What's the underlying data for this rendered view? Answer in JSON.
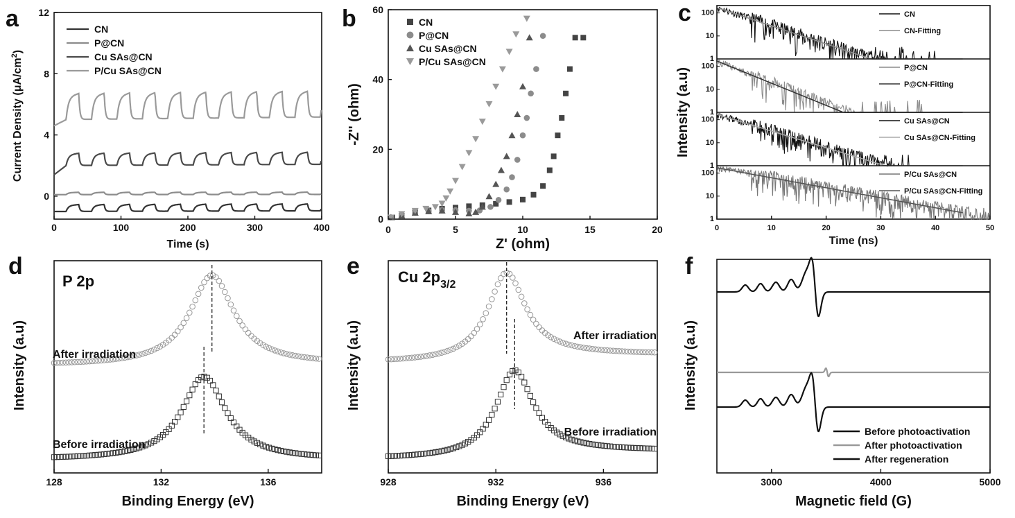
{
  "panels": {
    "a": "a",
    "b": "b",
    "c": "c",
    "d": "d",
    "e": "e",
    "f": "f"
  },
  "chart_data": [
    {
      "id": "a",
      "type": "line",
      "title": "",
      "xlabel": "Time (s)",
      "ylabel_main": "Current Density (",
      "ylabel_mu": "μ",
      "ylabel_unit": "A/cm",
      "ylabel_sup": "2",
      "ylabel_end": ")",
      "xlim": [
        0,
        400
      ],
      "ylim": [
        -1.5,
        12
      ],
      "xticks": [
        0,
        100,
        200,
        300,
        400
      ],
      "yticks": [
        0,
        4,
        8,
        12
      ],
      "legend": [
        "CN",
        "P@CN",
        "Cu SAs@CN",
        "P/Cu SAs@CN"
      ],
      "series": [
        {
          "name": "CN",
          "color": "#333333",
          "base": -1.0,
          "amp": 0.45,
          "start": -1.0
        },
        {
          "name": "P@CN",
          "color": "#8c8c8c",
          "base": 0.1,
          "amp": 0.15,
          "start": 0.1
        },
        {
          "name": "Cu SAs@CN",
          "color": "#4a4a4a",
          "base": 2.0,
          "amp": 0.8,
          "start": 1.4
        },
        {
          "name": "P/Cu SAs@CN",
          "color": "#9a9a9a",
          "base": 5.0,
          "amp": 1.7,
          "start": 4.6
        }
      ],
      "on_period_s": 38
    },
    {
      "id": "b",
      "type": "scatter",
      "xlabel": "Z' (ohm)",
      "ylabel": "-Z'' (ohm)",
      "xlim": [
        0,
        20
      ],
      "ylim": [
        0,
        60
      ],
      "xticks": [
        0,
        5,
        10,
        15,
        20
      ],
      "yticks": [
        0,
        20,
        40,
        60
      ],
      "legend": [
        "CN",
        "P@CN",
        "Cu SAs@CN",
        "P/Cu SAs@CN"
      ],
      "series": [
        {
          "name": "CN",
          "marker": "square",
          "color": "#444444",
          "x": [
            0.3,
            1.0,
            2.0,
            3.0,
            4.0,
            5.0,
            6.0,
            7.0,
            8.0,
            9.0,
            10.0,
            10.8,
            11.5,
            12.0,
            12.3,
            12.6,
            12.9,
            13.2,
            13.5,
            13.9,
            14.5
          ],
          "y": [
            0.5,
            1.0,
            2.0,
            2.5,
            3.0,
            3.3,
            3.7,
            4.0,
            4.4,
            4.9,
            5.6,
            7.0,
            9.5,
            14,
            18,
            24,
            29,
            36,
            43,
            52,
            52
          ]
        },
        {
          "name": "P@CN",
          "marker": "circle",
          "color": "#8c8c8c",
          "x": [
            0.2,
            1.0,
            2.0,
            3.0,
            4.0,
            5.0,
            6.0,
            6.8,
            7.6,
            8.2,
            8.8,
            9.2,
            9.6,
            10.0,
            10.3,
            10.6,
            11.0,
            11.5
          ],
          "y": [
            0.5,
            1.0,
            1.8,
            2.3,
            2.6,
            2.6,
            2.4,
            2.5,
            3.5,
            5.5,
            8.5,
            12,
            17,
            24,
            29,
            36,
            43,
            52.5
          ]
        },
        {
          "name": "Cu SAs@CN",
          "marker": "triangle-up",
          "color": "#555555",
          "x": [
            0.2,
            1.0,
            2.0,
            3.0,
            4.0,
            5.0,
            6.0,
            6.5,
            7.0,
            7.5,
            8.0,
            8.4,
            8.8,
            9.2,
            9.6,
            10.0,
            10.5
          ],
          "y": [
            0.5,
            1.0,
            1.8,
            2.2,
            2.4,
            2.0,
            1.6,
            2.0,
            3.5,
            6.5,
            10,
            14,
            18,
            24,
            30,
            38,
            52
          ]
        },
        {
          "name": "P/Cu SAs@CN",
          "marker": "triangle-down",
          "color": "#9a9a9a",
          "x": [
            0.2,
            1.0,
            2.0,
            2.8,
            3.5,
            4.0,
            4.3,
            4.6,
            5.0,
            5.5,
            6.0,
            6.5,
            7.0,
            7.5,
            8.0,
            8.5,
            9.0,
            9.5,
            10.3
          ],
          "y": [
            0.5,
            1.5,
            2.4,
            3.0,
            3.5,
            4.5,
            6,
            8,
            11,
            15,
            19,
            23,
            28,
            33,
            38,
            43,
            48,
            53,
            57.5
          ]
        }
      ]
    },
    {
      "id": "c",
      "type": "line",
      "xlabel": "Time (ns)",
      "ylabel": "Intensity (a.u)",
      "xlim": [
        0,
        50
      ],
      "xticks": [
        0,
        10,
        20,
        30,
        40,
        50
      ],
      "yticks": [
        1,
        10,
        100
      ],
      "subplots": [
        {
          "legend": [
            "CN",
            "CN-Fitting"
          ],
          "colors": [
            "#111111",
            "#8c8c8c"
          ],
          "tau": 5.5,
          "noise_end": 40
        },
        {
          "legend": [
            "P@CN",
            "P@CN-Fitting"
          ],
          "colors": [
            "#8c8c8c",
            "#333333"
          ],
          "tau": 4.5,
          "noise_end": 38
        },
        {
          "legend": [
            "Cu SAs@CN",
            "Cu SAs@CN-Fitting"
          ],
          "colors": [
            "#111111",
            "#aaaaaa"
          ],
          "tau": 6.0,
          "noise_end": 36
        },
        {
          "legend": [
            "P/Cu SAs@CN",
            "P/Cu SAs@CN-Fitting"
          ],
          "colors": [
            "#777777",
            "#555555"
          ],
          "tau": 10.0,
          "noise_end": 50
        }
      ]
    },
    {
      "id": "d",
      "type": "scatter",
      "title": "P 2p",
      "xlabel": "Binding Energy (eV)",
      "ylabel": "Intensity (a.u)",
      "xlim": [
        128,
        138
      ],
      "xticks": [
        128,
        132,
        136
      ],
      "series": [
        {
          "name": "After irradiation",
          "marker": "circle",
          "center": 133.9,
          "width": 1.0,
          "peak_rel": 1.0,
          "bg_left": 0.0,
          "bg_right": 0.0
        },
        {
          "name": "Before irradiation",
          "marker": "square",
          "center": 133.6,
          "width": 1.0,
          "peak_rel": 1.0,
          "bg_left": 0.0,
          "bg_right": 0.0
        }
      ]
    },
    {
      "id": "e",
      "type": "scatter",
      "title_main": "Cu 2p",
      "title_sub": "3/2",
      "xlabel": "Binding Energy (eV)",
      "ylabel": "Intensity (a.u)",
      "xlim": [
        928,
        938
      ],
      "xticks": [
        928,
        932,
        936
      ],
      "series": [
        {
          "name": "After irradiation",
          "marker": "circle",
          "center": 932.4,
          "width": 0.85
        },
        {
          "name": "Before irradiation",
          "marker": "square",
          "center": 932.7,
          "width": 0.85
        }
      ]
    },
    {
      "id": "f",
      "type": "line",
      "xlabel": "Magnetic field (G)",
      "ylabel": "Intensity (a.u)",
      "xlim": [
        2500,
        5000
      ],
      "xticks": [
        3000,
        4000,
        5000
      ],
      "legend": [
        "Before photoactivation",
        "After photoactivation",
        "After regeneration"
      ],
      "series": [
        {
          "name": "Before photoactivation",
          "color": "#111111"
        },
        {
          "name": "After photoactivation",
          "color": "#999999"
        },
        {
          "name": "After regeneration",
          "color": "#111111"
        }
      ]
    }
  ]
}
